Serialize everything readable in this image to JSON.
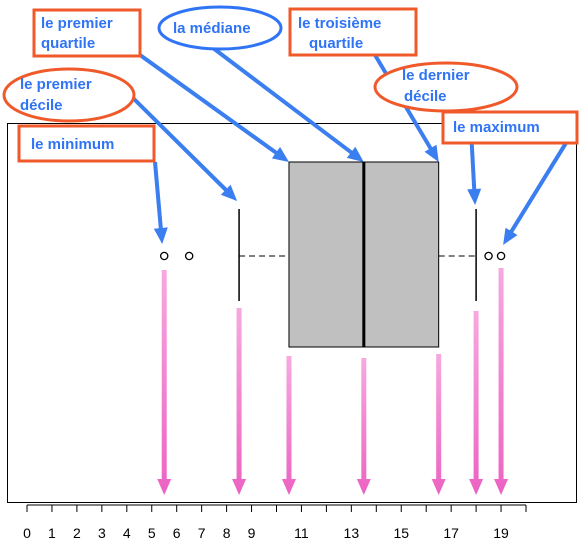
{
  "chart_data": {
    "type": "boxplot",
    "axis": {
      "ticks": [
        0,
        1,
        2,
        3,
        4,
        5,
        6,
        7,
        8,
        9,
        11,
        13,
        15,
        17,
        19
      ],
      "range": [
        0,
        20
      ]
    },
    "box": {
      "minimum": 5.5,
      "first_decile": 8.5,
      "first_quartile": 10.5,
      "median": 13.5,
      "third_quartile": 16.5,
      "last_decile": 18,
      "maximum": 19
    },
    "outliers": [
      5.5,
      6.5,
      18.5,
      19
    ]
  },
  "labels": {
    "first_quartile": [
      "le premier",
      "quartile"
    ],
    "median": [
      "la médiane"
    ],
    "third_quartile": [
      "le troisième",
      "quartile"
    ],
    "first_decile": [
      "le premier",
      "décile"
    ],
    "last_decile": [
      "le dernier",
      "décile"
    ],
    "minimum": [
      "le minimum"
    ],
    "maximum": [
      "le maximum"
    ]
  },
  "colors": {
    "label_text": "#2f74f5",
    "rect_border": "#f05a2b",
    "ellipse_border": "#f05a2b",
    "median_ellipse_border": "#2f74f5",
    "blue_arrow": "#3a7ef0",
    "pink_arrow": "#ee72c8",
    "box_fill": "#c0c0c0"
  }
}
